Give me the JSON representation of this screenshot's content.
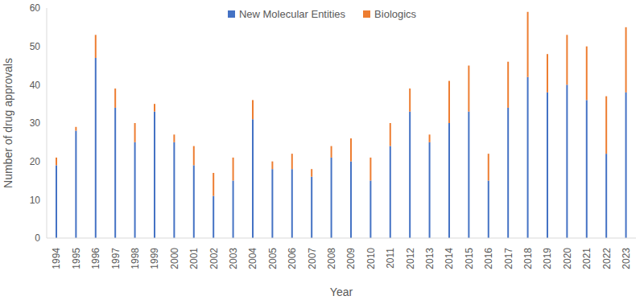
{
  "chart_data": {
    "type": "bar",
    "stacked": true,
    "grid": false,
    "legend": "top",
    "x_label": "Year",
    "y_label": "Number of drug approvals",
    "categories": [
      "1994",
      "1995",
      "1996",
      "1997",
      "1998",
      "1999",
      "2000",
      "2001",
      "2002",
      "2003",
      "2004",
      "2005",
      "2006",
      "2007",
      "2008",
      "2009",
      "2010",
      "2011",
      "2012",
      "2013",
      "2014",
      "2015",
      "2016",
      "2017",
      "2018",
      "2019",
      "2020",
      "2021",
      "2022",
      "2023"
    ],
    "series": [
      {
        "name": "New Molecular Entities",
        "color": "#4472c4",
        "values": [
          19,
          28,
          47,
          34,
          25,
          33,
          25,
          19,
          11,
          15,
          31,
          18,
          18,
          16,
          21,
          20,
          15,
          24,
          33,
          25,
          30,
          33,
          15,
          34,
          42,
          38,
          40,
          36,
          22,
          38
        ]
      },
      {
        "name": "Biologics",
        "color": "#ed7d31",
        "values": [
          2,
          1,
          6,
          5,
          5,
          2,
          2,
          5,
          6,
          6,
          5,
          2,
          4,
          2,
          3,
          6,
          6,
          6,
          6,
          2,
          11,
          12,
          7,
          12,
          17,
          10,
          13,
          14,
          15,
          17
        ]
      }
    ],
    "ylim": [
      0,
      60
    ],
    "yticks": [
      0,
      10,
      20,
      30,
      40,
      50,
      60
    ]
  }
}
